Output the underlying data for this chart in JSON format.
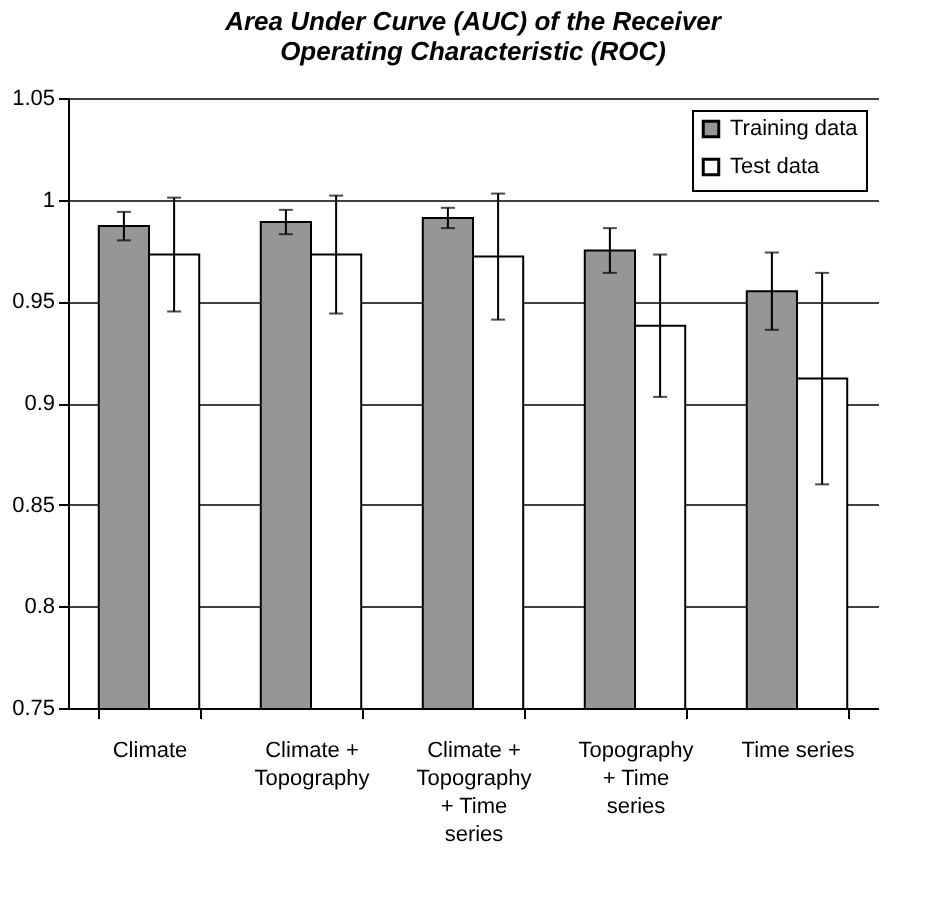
{
  "chart_data": {
    "type": "bar",
    "title": "Area Under Curve (AUC) of the Receiver Operating Characteristic (ROC)",
    "categories": [
      "Climate",
      "Climate + Topography",
      "Climate + Topography + Time series",
      "Topography + Time series",
      "Time series"
    ],
    "series": [
      {
        "name": "Training data",
        "color": "#969696",
        "values": [
          0.987,
          0.989,
          0.991,
          0.975,
          0.955
        ],
        "errors": [
          0.007,
          0.006,
          0.005,
          0.011,
          0.019
        ]
      },
      {
        "name": "Test data",
        "color": "#ffffff",
        "values": [
          0.973,
          0.973,
          0.972,
          0.938,
          0.912
        ],
        "errors": [
          0.028,
          0.029,
          0.031,
          0.035,
          0.052
        ]
      }
    ],
    "ylim": [
      0.75,
      1.05
    ],
    "yticks": [
      0.75,
      0.8,
      0.85,
      0.9,
      0.95,
      1,
      1.05
    ],
    "grid": "y",
    "legend": "top right"
  }
}
